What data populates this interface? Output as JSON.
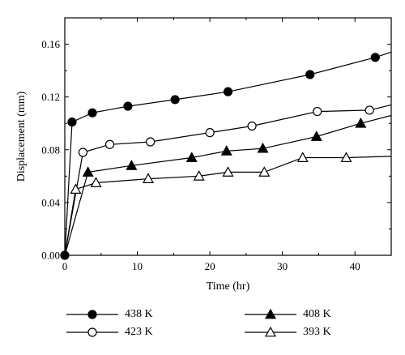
{
  "chart_data": {
    "type": "line",
    "title": "",
    "xlabel": "Time (hr)",
    "ylabel": "Displacement (mm)",
    "xlim": [
      0,
      45
    ],
    "ylim": [
      0,
      0.18
    ],
    "xticks": [
      0,
      10,
      20,
      30,
      40
    ],
    "yticks": [
      0.0,
      0.04,
      0.08,
      0.12,
      0.16
    ],
    "xtick_labels": [
      "0",
      "10",
      "20",
      "30",
      "40"
    ],
    "ytick_labels": [
      "0.00",
      "0.04",
      "0.08",
      "0.12",
      "0.16"
    ],
    "grid": false,
    "legend_position": "bottom",
    "series": [
      {
        "name": "438 K",
        "marker": "filled-circle",
        "color": "#000000",
        "x": [
          0,
          1.0,
          3.8,
          8.7,
          15.2,
          22.5,
          33.8,
          42.8,
          45
        ],
        "y": [
          0.0,
          0.101,
          0.108,
          0.113,
          0.118,
          0.124,
          0.137,
          0.15,
          0.154
        ],
        "markers_at": [
          0,
          1,
          2,
          3,
          4,
          5,
          6,
          7
        ]
      },
      {
        "name": "423 K",
        "marker": "open-circle",
        "color": "#000000",
        "x": [
          0,
          2.5,
          6.2,
          11.8,
          20.0,
          25.8,
          34.8,
          42.0,
          45
        ],
        "y": [
          0.0,
          0.078,
          0.084,
          0.086,
          0.093,
          0.098,
          0.109,
          0.11,
          0.114
        ],
        "markers_at": [
          1,
          2,
          3,
          4,
          5,
          6,
          7
        ]
      },
      {
        "name": "408 K",
        "marker": "filled-triangle",
        "color": "#000000",
        "x": [
          0,
          3.2,
          9.2,
          17.5,
          22.3,
          27.3,
          34.7,
          40.8,
          45
        ],
        "y": [
          0.0,
          0.063,
          0.068,
          0.074,
          0.079,
          0.081,
          0.09,
          0.1,
          0.106
        ],
        "markers_at": [
          1,
          2,
          3,
          4,
          5,
          6,
          7
        ]
      },
      {
        "name": "393 K",
        "marker": "open-triangle",
        "color": "#000000",
        "x": [
          0,
          1.5,
          4.3,
          11.5,
          18.5,
          22.5,
          27.5,
          32.8,
          38.8,
          45
        ],
        "y": [
          0.0,
          0.05,
          0.055,
          0.058,
          0.06,
          0.063,
          0.063,
          0.074,
          0.074,
          0.075
        ],
        "markers_at": [
          1,
          2,
          3,
          4,
          5,
          6,
          7,
          8
        ]
      }
    ],
    "legend": [
      {
        "label": "438 K",
        "series": 0
      },
      {
        "label": "423 K",
        "series": 1
      },
      {
        "label": "408 K",
        "series": 2
      },
      {
        "label": "393 K",
        "series": 3
      }
    ]
  }
}
